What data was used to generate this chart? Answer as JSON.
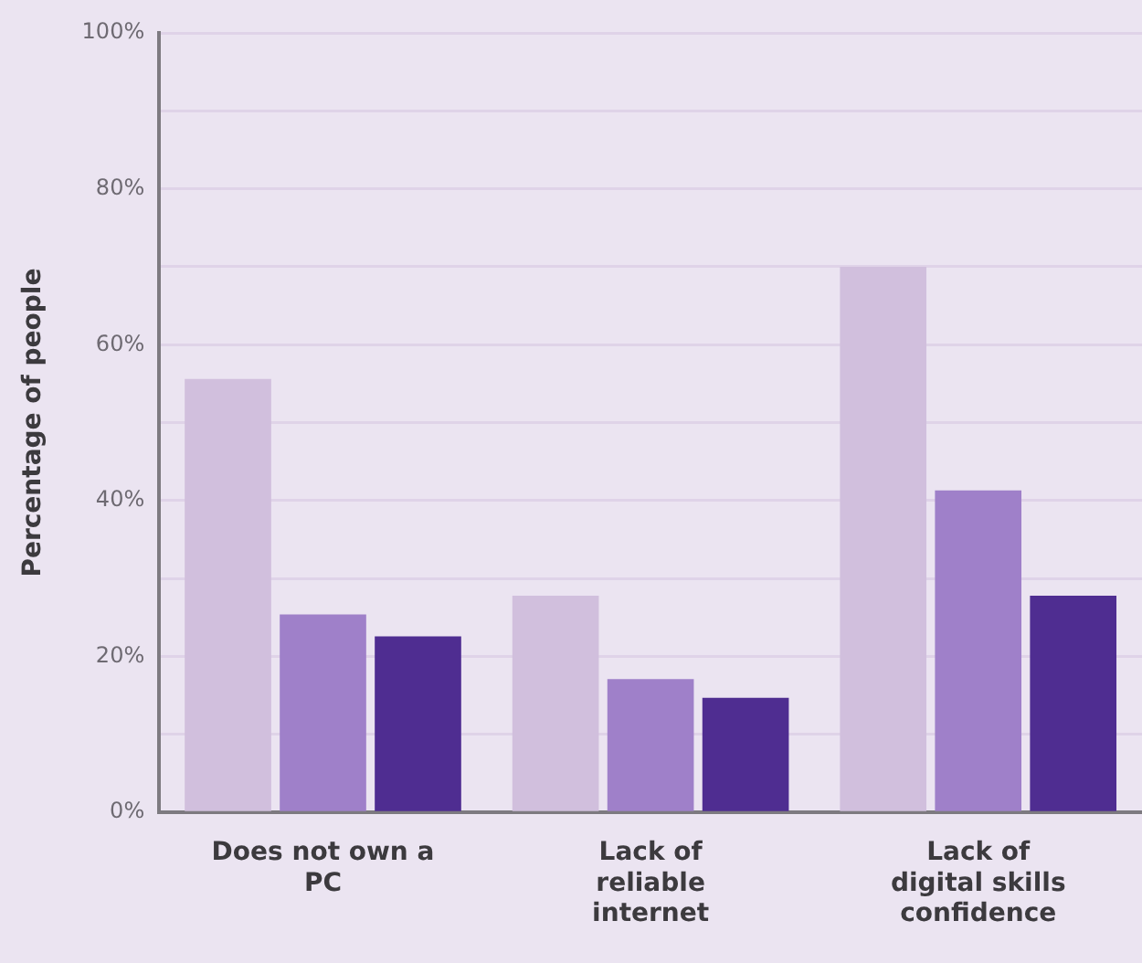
{
  "chart_data": {
    "type": "bar",
    "ylabel": "Percentage of people",
    "categories": [
      "Does not own a PC",
      "Lack of reliable internet",
      "Lack of digital skills confidence"
    ],
    "series": [
      {
        "color": "#d1bfdd",
        "values": [
          55.6,
          27.8,
          70.0
        ]
      },
      {
        "color": "#9f80c9",
        "values": [
          25.4,
          17.1,
          41.3
        ]
      },
      {
        "color": "#4f2d91",
        "values": [
          22.6,
          14.7,
          27.8
        ]
      }
    ],
    "ylim": [
      0,
      100
    ],
    "yticks": [
      {
        "value": 0,
        "label": "0%"
      },
      {
        "value": 10,
        "label": null
      },
      {
        "value": 20,
        "label": "20%"
      },
      {
        "value": 30,
        "label": null
      },
      {
        "value": 40,
        "label": "40%"
      },
      {
        "value": 50,
        "label": null
      },
      {
        "value": 60,
        "label": "60%"
      },
      {
        "value": 70,
        "label": null
      },
      {
        "value": 80,
        "label": "80%"
      },
      {
        "value": 90,
        "label": null
      },
      {
        "value": 100,
        "label": "100%"
      }
    ],
    "grid": "y",
    "legend": false
  }
}
